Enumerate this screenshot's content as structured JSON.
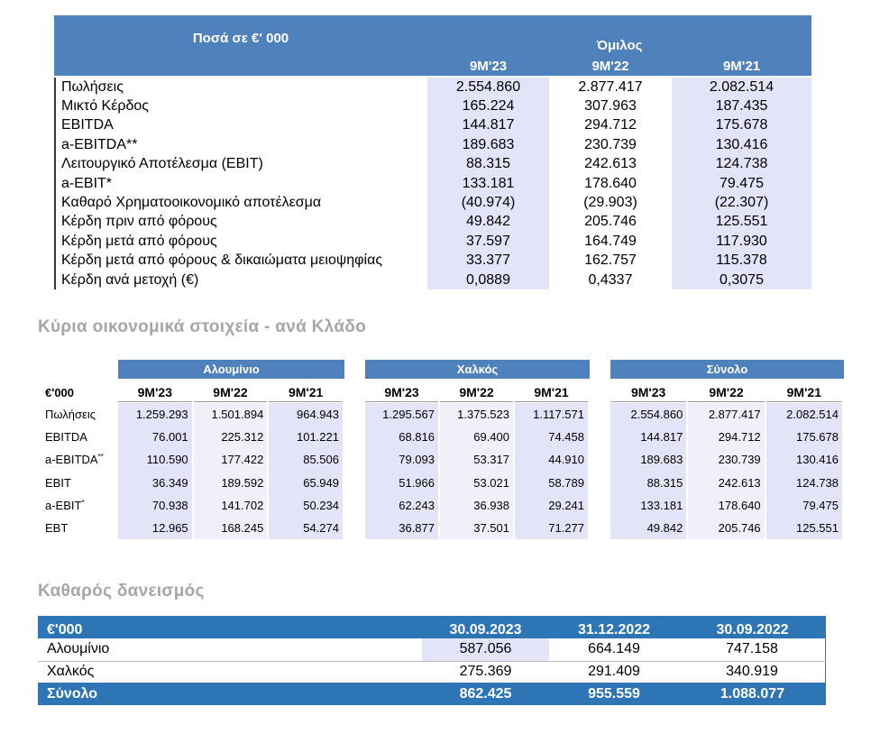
{
  "group_table": {
    "header_label": "Ποσά  σε €' 000",
    "group": "Όμιλος",
    "columns": [
      "9M'23",
      "9M'22",
      "9M'21"
    ],
    "rows": [
      {
        "label": "Πωλήσεις",
        "values": [
          "2.554.860",
          "2.877.417",
          "2.082.514"
        ]
      },
      {
        "label": "Μικτό Κέρδος",
        "values": [
          "165.224",
          "307.963",
          "187.435"
        ]
      },
      {
        "label": "EBITDA",
        "values": [
          "144.817",
          "294.712",
          "175.678"
        ]
      },
      {
        "label": "a-EBITDA**",
        "values": [
          "189.683",
          "230.739",
          "130.416"
        ]
      },
      {
        "label": "Λειτουργικό Αποτέλεσμα (EBIT)",
        "values": [
          "88.315",
          "242.613",
          "124.738"
        ]
      },
      {
        "label": "a-EBIT*",
        "values": [
          "133.181",
          "178.640",
          "79.475"
        ]
      },
      {
        "label": "Καθαρό Χρηματοοικονομικό αποτέλεσμα",
        "values": [
          "(40.974)",
          "(29.903)",
          "(22.307)"
        ]
      },
      {
        "label": "Κέρδη πριν από φόρους",
        "values": [
          "49.842",
          "205.746",
          "125.551"
        ]
      },
      {
        "label": "Κέρδη μετά από φόρους",
        "values": [
          "37.597",
          "164.749",
          "117.930"
        ]
      },
      {
        "label": "Κέρδη μετά από φόρους & δικαιώματα μειοψηφίας",
        "values": [
          "33.377",
          "162.757",
          "115.378"
        ]
      },
      {
        "label": "Κέρδη ανά μετοχή (€)",
        "values": [
          "0,0889",
          "0,4337",
          "0,3075"
        ]
      }
    ]
  },
  "segments_title": "Κύρια οικονομικά στοιχεία - ανά Κλάδο",
  "segments_table": {
    "corner": "€'000",
    "groups": [
      {
        "name": "Αλουμίνιο",
        "columns": [
          "9M'23",
          "9M'22",
          "9M'21"
        ]
      },
      {
        "name": "Χαλκός",
        "columns": [
          "9M'23",
          "9M'22",
          "9M'21"
        ]
      },
      {
        "name": "Σύνολο",
        "columns": [
          "9M'23",
          "9M'22",
          "9M'21"
        ]
      }
    ],
    "rows": [
      {
        "label": "Πωλήσεις",
        "values": [
          "1.259.293",
          "1.501.894",
          "964.943",
          "1.295.567",
          "1.375.523",
          "1.117.571",
          "2.554.860",
          "2.877.417",
          "2.082.514"
        ]
      },
      {
        "label": "EBITDA",
        "values": [
          "76.001",
          "225.312",
          "101.221",
          "68.816",
          "69.400",
          "74.458",
          "144.817",
          "294.712",
          "175.678"
        ]
      },
      {
        "label": "a-EBITDA",
        "sup": "**",
        "values": [
          "110.590",
          "177.422",
          "85.506",
          "79.093",
          "53.317",
          "44.910",
          "189.683",
          "230.739",
          "130.416"
        ]
      },
      {
        "label": "EBIT",
        "values": [
          "36.349",
          "189.592",
          "65.949",
          "51.966",
          "53.021",
          "58.789",
          "88.315",
          "242.613",
          "124.738"
        ]
      },
      {
        "label": "a-EBIT",
        "sup": "*",
        "values": [
          "70.938",
          "141.702",
          "50.234",
          "62.243",
          "36.938",
          "29.241",
          "133.181",
          "178.640",
          "79.475"
        ]
      },
      {
        "label": "EBT",
        "values": [
          "12.965",
          "168.245",
          "54.274",
          "36.877",
          "37.501",
          "71.277",
          "49.842",
          "205.746",
          "125.551"
        ]
      }
    ]
  },
  "net_debt_title": "Καθαρός δανεισμός",
  "net_debt_table": {
    "header": [
      "€'000",
      "30.09.2023",
      "31.12.2022",
      "30.09.2022"
    ],
    "rows": [
      {
        "label": "Αλουμίνιο",
        "values": [
          "587.056",
          "664.149",
          "747.158"
        ]
      },
      {
        "label": "Χαλκός",
        "values": [
          "275.369",
          "291.409",
          "340.919"
        ]
      }
    ],
    "total": {
      "label": "Σύνολο",
      "values": [
        "862.425",
        "955.559",
        "1.088.077"
      ]
    }
  }
}
